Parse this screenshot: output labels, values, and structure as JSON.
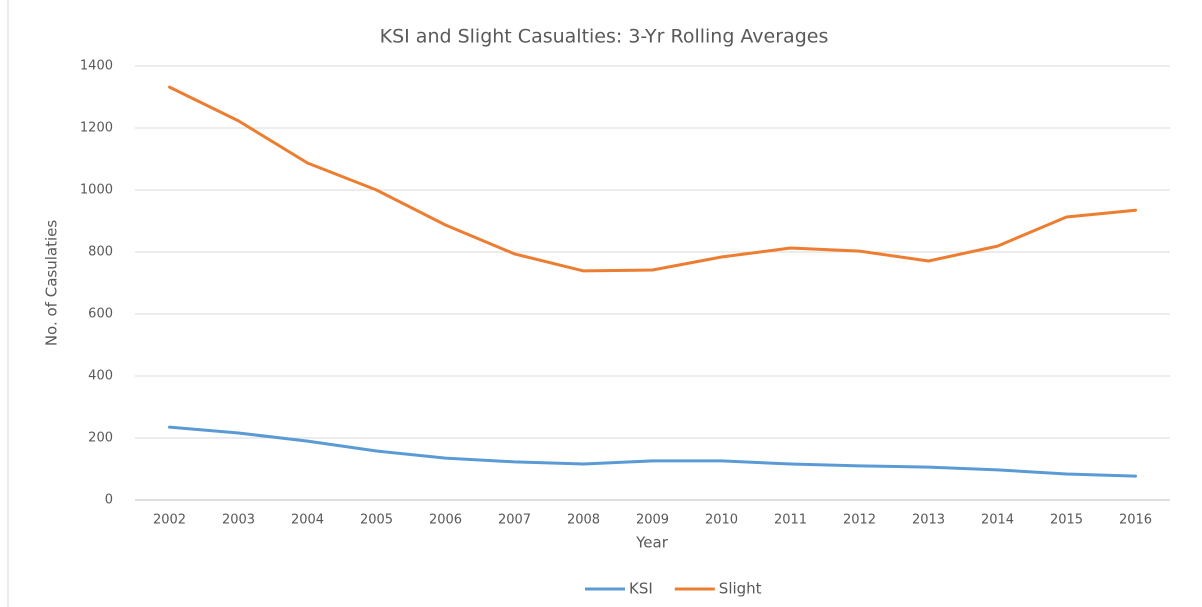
{
  "chart_data": {
    "type": "line",
    "title": "KSI and Slight Casualties: 3-Yr Rolling Averages",
    "x_label": "Year",
    "y_label": "No. of Casulaties",
    "categories": [
      "2002",
      "2003",
      "2004",
      "2005",
      "2006",
      "2007",
      "2008",
      "2009",
      "2010",
      "2011",
      "2012",
      "2013",
      "2014",
      "2015",
      "2016"
    ],
    "series": [
      {
        "name": "KSI",
        "color": "#5b9bd5",
        "values": [
          235,
          216,
          190,
          158,
          135,
          123,
          116,
          126,
          126,
          116,
          110,
          106,
          97,
          84,
          77
        ]
      },
      {
        "name": "Slight",
        "color": "#ed7d31",
        "values": [
          1332,
          1223,
          1087,
          1000,
          887,
          794,
          739,
          742,
          784,
          813,
          803,
          771,
          819,
          913,
          935
        ]
      }
    ],
    "ylim": [
      0,
      1400
    ],
    "yticks": [
      0,
      200,
      400,
      600,
      800,
      1000,
      1200,
      1400
    ],
    "grid": true,
    "legend": "bottom"
  }
}
